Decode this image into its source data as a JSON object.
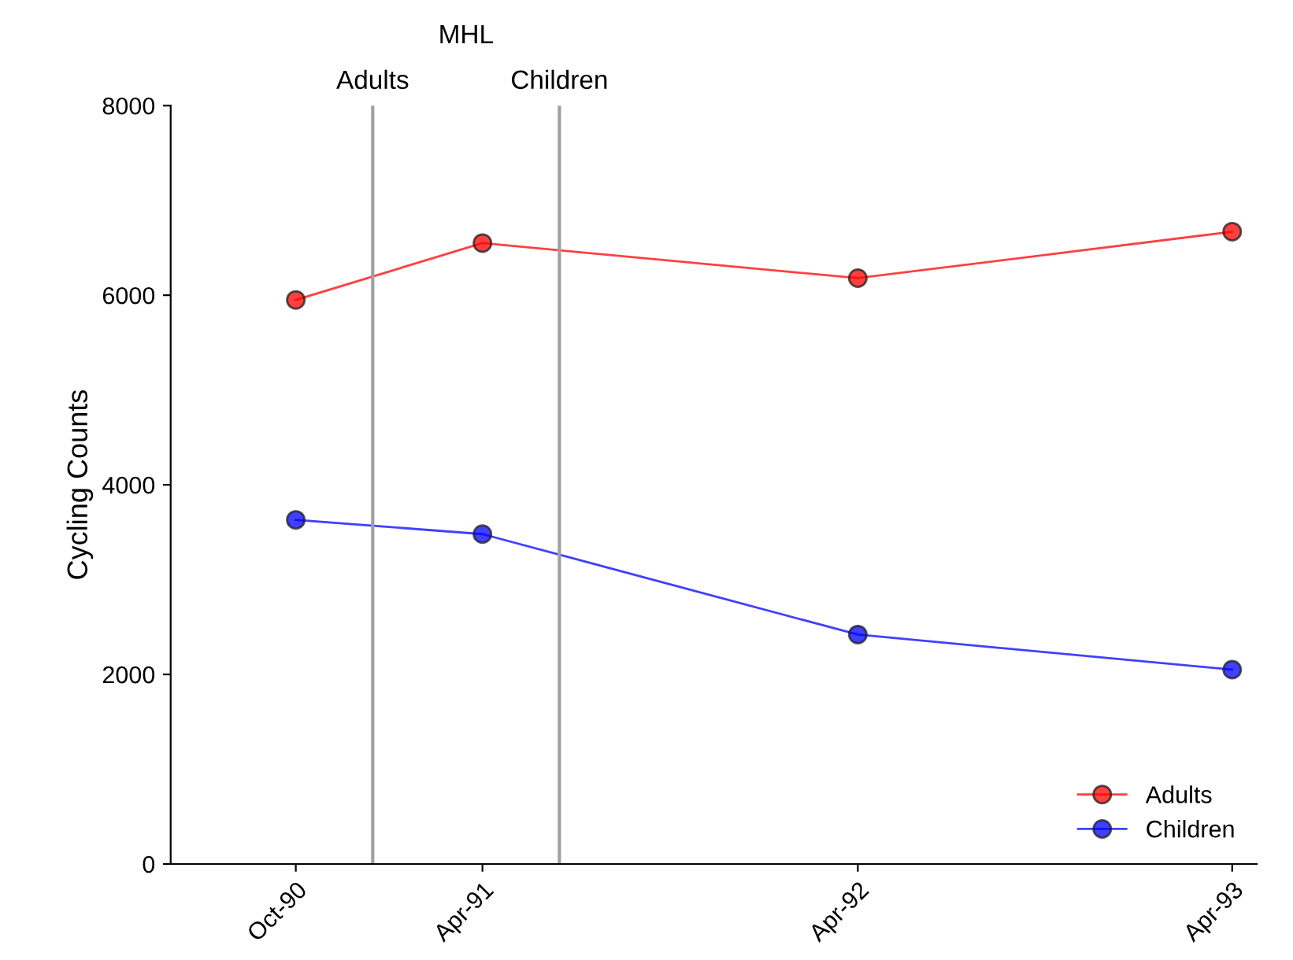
{
  "chart_data": {
    "type": "line",
    "ylabel": "Cycling Counts",
    "x": [
      "1990-10",
      "1991-04",
      "1992-04",
      "1993-04"
    ],
    "series": [
      {
        "name": "Adults",
        "color": "#ff0000",
        "values": [
          5950,
          6550,
          6180,
          6670
        ]
      },
      {
        "name": "Children",
        "color": "#0000ff",
        "values": [
          3630,
          3480,
          2420,
          2050
        ]
      }
    ],
    "xlim": [
      "1990-06",
      "1993-04-25"
    ],
    "xticks": [
      {
        "value": "1990-10",
        "label": "Oct-90"
      },
      {
        "value": "1991-04",
        "label": "Apr-91"
      },
      {
        "value": "1992-04",
        "label": "Apr-92"
      },
      {
        "value": "1993-04",
        "label": "Apr-93"
      }
    ],
    "ylim": [
      0,
      8000
    ],
    "yticks": [
      0,
      2000,
      4000,
      6000,
      8000
    ],
    "ref_lines": [
      {
        "axis": "x",
        "value": "1990-12-15",
        "label": "Adults",
        "color": "#a0a0a0"
      },
      {
        "axis": "x",
        "value": "1991-06-15",
        "label": "Children",
        "color": "#a0a0a0"
      }
    ],
    "annotations": [
      "MHL"
    ],
    "marker": "circle",
    "line_style": "solid",
    "grid": false,
    "legend": "bottom right"
  }
}
